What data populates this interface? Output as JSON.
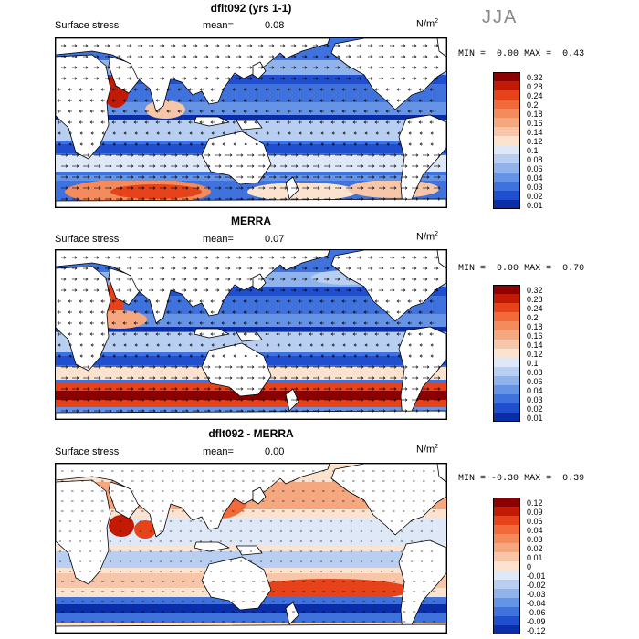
{
  "season": "JJA",
  "panels": [
    {
      "title": "dflt092 (yrs 1-1)",
      "field": "Surface stress",
      "mean_label": "mean=",
      "mean_value": "0.08",
      "units": "N/m",
      "units_exp": "2",
      "min_label": "MIN =",
      "min_value": "0.00",
      "max_label": "MAX =",
      "max_value": "0.43",
      "levels": [
        "0.32",
        "0.28",
        "0.24",
        "0.2",
        "0.18",
        "0.16",
        "0.14",
        "0.12",
        "0.1",
        "0.08",
        "0.06",
        "0.04",
        "0.03",
        "0.02",
        "0.01"
      ],
      "colors": [
        "#8b0000",
        "#c21a05",
        "#e6431a",
        "#f2693a",
        "#f48b5c",
        "#f5a880",
        "#f7c6a8",
        "#fbe3d0",
        "#dfe8f7",
        "#b9cff2",
        "#90b3ec",
        "#6593e6",
        "#3f72dc",
        "#1f4fcf",
        "#0a2ea8"
      ],
      "style": "model"
    },
    {
      "title": "MERRA",
      "field": "Surface stress",
      "mean_label": "mean=",
      "mean_value": "0.07",
      "units": "N/m",
      "units_exp": "2",
      "min_label": "MIN =",
      "min_value": "0.00",
      "max_label": "MAX =",
      "max_value": "0.70",
      "levels": [
        "0.32",
        "0.28",
        "0.24",
        "0.2",
        "0.18",
        "0.16",
        "0.14",
        "0.12",
        "0.1",
        "0.08",
        "0.06",
        "0.04",
        "0.03",
        "0.02",
        "0.01"
      ],
      "colors": [
        "#8b0000",
        "#c21a05",
        "#e6431a",
        "#f2693a",
        "#f48b5c",
        "#f5a880",
        "#f7c6a8",
        "#fbe3d0",
        "#dfe8f7",
        "#b9cff2",
        "#90b3ec",
        "#6593e6",
        "#3f72dc",
        "#1f4fcf",
        "#0a2ea8"
      ],
      "style": "obs"
    },
    {
      "title": "dflt092 - MERRA",
      "field": "Surface stress",
      "mean_label": "mean=",
      "mean_value": "0.00",
      "units": "N/m",
      "units_exp": "2",
      "min_label": "MIN =",
      "min_value": "-0.30",
      "max_label": "MAX =",
      "max_value": "0.39",
      "levels": [
        "0.12",
        "0.09",
        "0.06",
        "0.04",
        "0.03",
        "0.02",
        "0.01",
        "0",
        "-0.01",
        "-0.02",
        "-0.03",
        "-0.04",
        "-0.06",
        "-0.09",
        "-0.12"
      ],
      "colors": [
        "#8b0000",
        "#c21a05",
        "#e6431a",
        "#f2693a",
        "#f48b5c",
        "#f5a880",
        "#f7c6a8",
        "#fbe3d0",
        "#dfe8f7",
        "#b9cff2",
        "#90b3ec",
        "#6593e6",
        "#3f72dc",
        "#1f4fcf",
        "#0a2ea8"
      ],
      "style": "diff"
    }
  ]
}
